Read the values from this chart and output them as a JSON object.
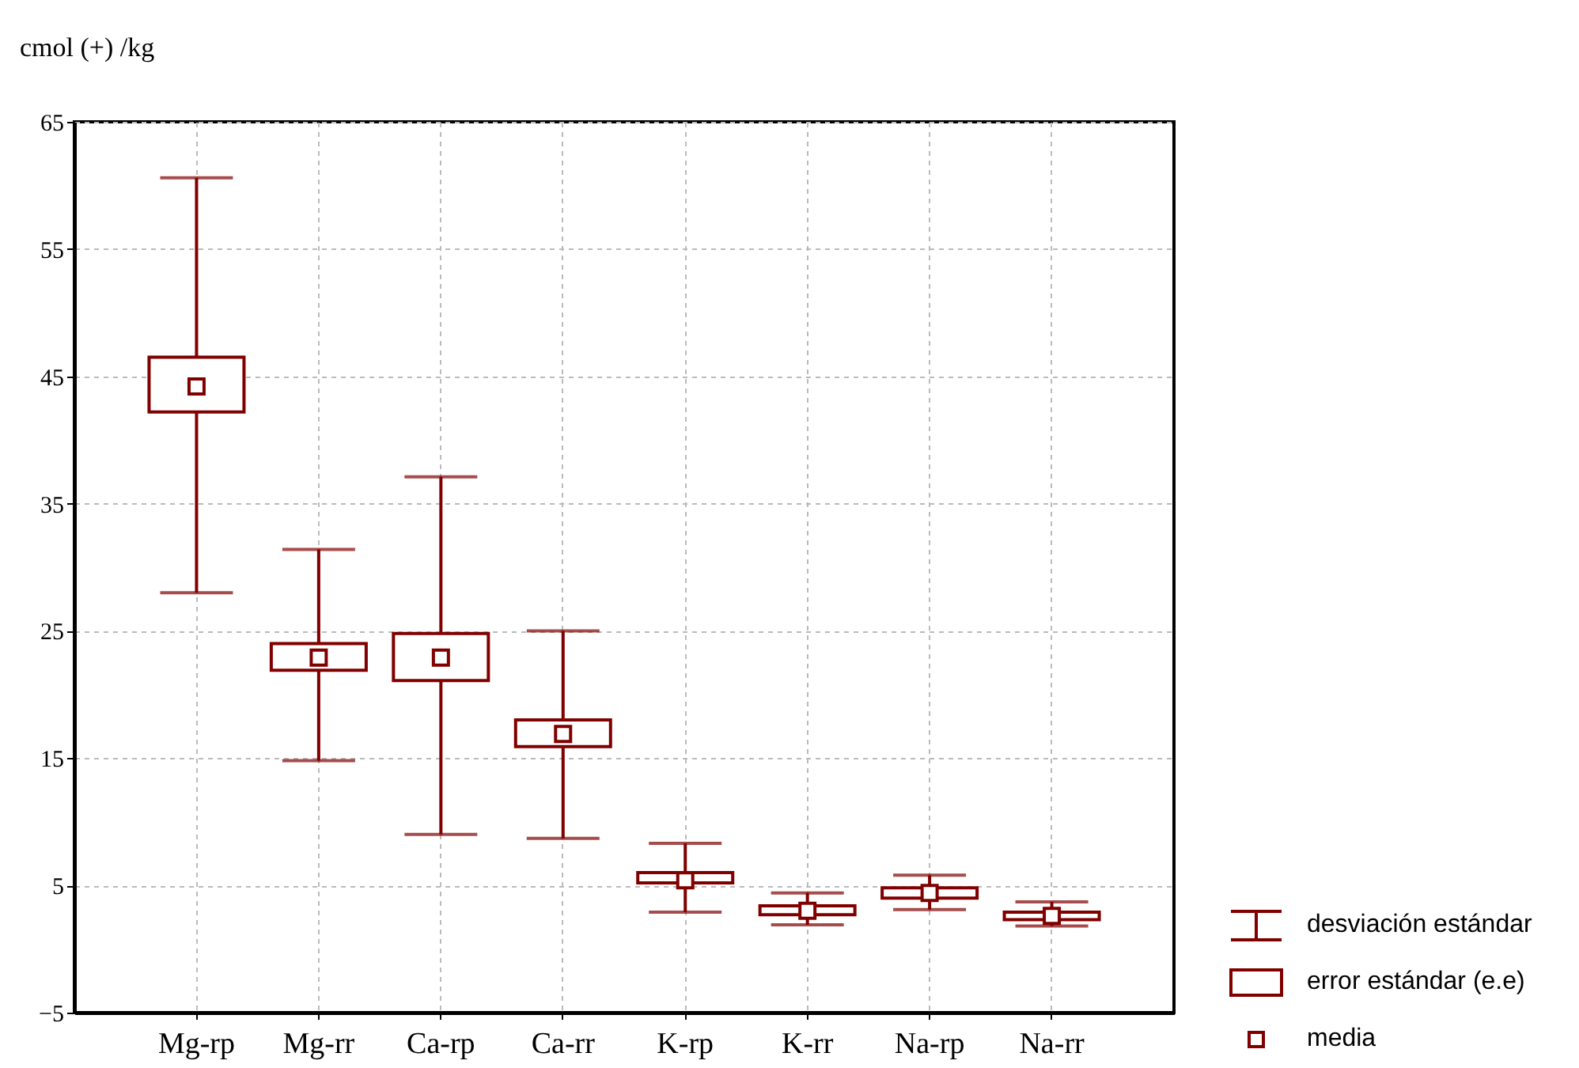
{
  "chart_data": {
    "type": "box",
    "ylabel": "cmol (+) /kg",
    "categories": [
      "Mg-rp",
      "Mg-rr",
      "Ca-rp",
      "Ca-rr",
      "K-rp",
      "K-rr",
      "Na-rp",
      "Na-rr"
    ],
    "series": [
      {
        "color": "#800000",
        "boxes": [
          {
            "low": 28,
            "q1": 42.2,
            "q3": 46.5,
            "high": 60.6,
            "mean": 44.2
          },
          {
            "low": 14.8,
            "q1": 21.9,
            "q3": 24,
            "high": 31.4,
            "mean": 22.9
          },
          {
            "low": 9,
            "q1": 21.1,
            "q3": 24.8,
            "high": 37.1,
            "mean": 22.9
          },
          {
            "low": 8.7,
            "q1": 15.9,
            "q3": 18,
            "high": 25,
            "mean": 16.9
          },
          {
            "low": 2.9,
            "q1": 5.2,
            "q3": 6,
            "high": 8.3,
            "mean": 5.4
          },
          {
            "low": 1.9,
            "q1": 2.7,
            "q3": 3.4,
            "high": 4.4,
            "mean": 3
          },
          {
            "low": 3.1,
            "q1": 4,
            "q3": 4.8,
            "high": 5.8,
            "mean": 4.4
          },
          {
            "low": 1.8,
            "q1": 2.3,
            "q3": 2.9,
            "high": 3.7,
            "mean": 2.6
          }
        ]
      }
    ],
    "ylim": [
      -5,
      65
    ],
    "yticks": [
      -5,
      5,
      15,
      25,
      35,
      45,
      55,
      65
    ],
    "grid": true,
    "annotations": [
      "desviación estándar",
      "error estándar (e.e)",
      "media"
    ]
  }
}
